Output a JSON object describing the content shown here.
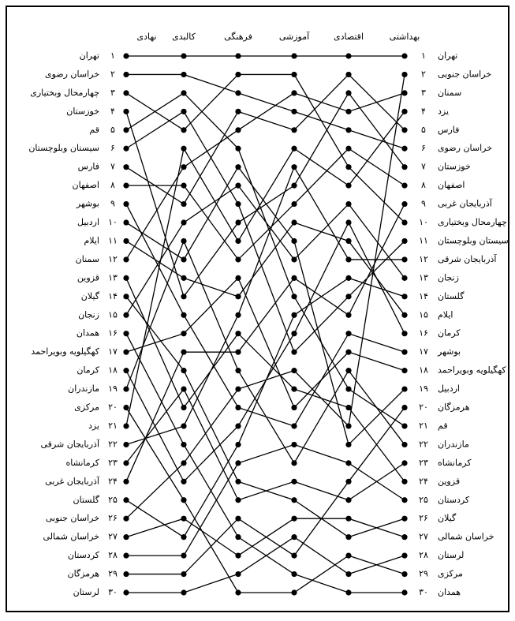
{
  "chart_data": {
    "type": "bump",
    "columns": [
      "نهادی",
      "کالبدی",
      "فرهنگی",
      "آموزشی",
      "اقتصادی",
      "بهداشتی"
    ],
    "rank_labels": [
      "۱",
      "۲",
      "۳",
      "۴",
      "۵",
      "۶",
      "۷",
      "۸",
      "۹",
      "۱۰",
      "۱۱",
      "۱۲",
      "۱۳",
      "۱۴",
      "۱۵",
      "۱۶",
      "۱۷",
      "۱۸",
      "۱۹",
      "۲۰",
      "۲۱",
      "۲۲",
      "۲۳",
      "۲۴",
      "۲۵",
      "۲۶",
      "۲۷",
      "۲۸",
      "۲۹",
      "۳۰"
    ],
    "color": "#000000",
    "provinces": [
      {
        "name": "تهران",
        "ranks": [
          1,
          1,
          1,
          1,
          1,
          1
        ]
      },
      {
        "name": "خراسان رضوی",
        "ranks": [
          2,
          2,
          3,
          4,
          5,
          6
        ]
      },
      {
        "name": "چهارمحال وبختیاری",
        "ranks": [
          3,
          5,
          2,
          2,
          7,
          10
        ]
      },
      {
        "name": "خوزستان",
        "ranks": [
          4,
          14,
          10,
          8,
          3,
          7
        ]
      },
      {
        "name": "قم",
        "ranks": [
          5,
          3,
          6,
          14,
          19,
          21
        ]
      },
      {
        "name": "سیستان وبلوچستان",
        "ranks": [
          6,
          4,
          9,
          17,
          14,
          11
        ]
      },
      {
        "name": "فارس",
        "ranks": [
          7,
          9,
          4,
          5,
          2,
          5
        ]
      },
      {
        "name": "اصفهان",
        "ranks": [
          8,
          8,
          12,
          9,
          6,
          8
        ]
      },
      {
        "name": "بوشهر",
        "ranks": [
          9,
          15,
          20,
          21,
          16,
          17
        ]
      },
      {
        "name": "اردبیل",
        "ranks": [
          10,
          12,
          7,
          11,
          22,
          19
        ]
      },
      {
        "name": "ایلام",
        "ranks": [
          11,
          13,
          14,
          10,
          11,
          15
        ]
      },
      {
        "name": "سمنان",
        "ranks": [
          12,
          7,
          5,
          3,
          4,
          3
        ]
      },
      {
        "name": "قزوین",
        "ranks": [
          13,
          20,
          16,
          19,
          20,
          24
        ]
      },
      {
        "name": "گیلان",
        "ranks": [
          14,
          18,
          24,
          25,
          27,
          26
        ]
      },
      {
        "name": "زنجان",
        "ranks": [
          15,
          10,
          8,
          12,
          9,
          13
        ]
      },
      {
        "name": "همدان",
        "ranks": [
          16,
          22,
          27,
          29,
          30,
          30
        ]
      },
      {
        "name": "کهگیلویه وبویراحمد",
        "ranks": [
          17,
          16,
          13,
          20,
          17,
          18
        ]
      },
      {
        "name": "کرمان",
        "ranks": [
          18,
          24,
          21,
          16,
          10,
          16
        ]
      },
      {
        "name": "مازندران",
        "ranks": [
          19,
          11,
          18,
          23,
          18,
          22
        ]
      },
      {
        "name": "مرکزی",
        "ranks": [
          20,
          25,
          30,
          30,
          28,
          29
        ]
      },
      {
        "name": "یزد",
        "ranks": [
          21,
          6,
          11,
          6,
          8,
          4
        ]
      },
      {
        "name": "آذربایجان شرقی",
        "ranks": [
          22,
          21,
          15,
          7,
          12,
          12
        ]
      },
      {
        "name": "کرمانشاه",
        "ranks": [
          23,
          19,
          25,
          24,
          25,
          23
        ]
      },
      {
        "name": "آذربایجان غربی",
        "ranks": [
          24,
          17,
          17,
          13,
          15,
          9
        ]
      },
      {
        "name": "گلستان",
        "ranks": [
          25,
          27,
          22,
          15,
          13,
          14
        ]
      },
      {
        "name": "خراسان جنوبی",
        "ranks": [
          26,
          23,
          19,
          18,
          21,
          2
        ]
      },
      {
        "name": "خراسان شمالی",
        "ranks": [
          27,
          26,
          28,
          26,
          26,
          27
        ]
      },
      {
        "name": "کردستان",
        "ranks": [
          28,
          28,
          23,
          22,
          23,
          25
        ]
      },
      {
        "name": "هرمزگان",
        "ranks": [
          29,
          29,
          26,
          28,
          24,
          20
        ]
      },
      {
        "name": "لرستان",
        "ranks": [
          30,
          30,
          29,
          27,
          29,
          28
        ]
      }
    ]
  }
}
